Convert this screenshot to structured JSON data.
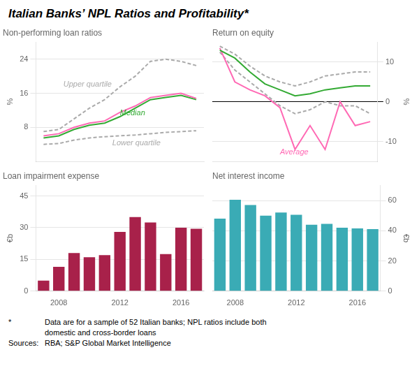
{
  "title": "Italian Banks’ NPL Ratios and Profitability*",
  "annotations": [
    [
      "*",
      "Data are for a sample of 52 Italian banks; NPL ratios include both"
    ],
    [
      "domestic and cross-border loans"
    ],
    [
      "Sources:",
      "RBA; S&P Global Market Intelligence"
    ]
  ],
  "chart_data": [
    {
      "type": "line",
      "title": "Non-performing loan ratios",
      "ylabel": "%",
      "x": [
        2007,
        2008,
        2009,
        2010,
        2011,
        2012,
        2013,
        2014,
        2015,
        2016,
        2017
      ],
      "xlim": [
        2006.5,
        2017.5
      ],
      "xticks": [
        2008,
        2012,
        2016
      ],
      "ylim": [
        0,
        28
      ],
      "yticks": [
        8,
        16,
        24
      ],
      "grid": true,
      "tick_labels": "y",
      "series": [
        {
          "color": "#aaaaaa",
          "line_style": "dashed",
          "values": [
            7.0,
            7.5,
            10.0,
            12.5,
            14.5,
            17.5,
            20.0,
            23.5,
            24.0,
            23.5,
            22.5
          ]
        },
        {
          "color": "#ff69b4",
          "line_style": "solid",
          "values": [
            6.0,
            6.5,
            8.0,
            9.0,
            9.5,
            11.5,
            13.0,
            15.0,
            15.5,
            16.0,
            14.8
          ]
        },
        {
          "color": "#33aa33",
          "line_style": "solid",
          "values": [
            5.5,
            6.0,
            7.5,
            8.5,
            9.0,
            10.5,
            12.5,
            14.5,
            15.0,
            15.5,
            14.5
          ]
        },
        {
          "color": "#aaaaaa",
          "line_style": "dashed",
          "values": [
            4.0,
            4.2,
            5.0,
            5.5,
            5.8,
            6.0,
            6.2,
            6.5,
            6.8,
            7.0,
            7.2
          ]
        }
      ],
      "annotations": [
        {
          "text": "Upper quartile",
          "x": 2008.3,
          "y": 17.5,
          "color": "#aaaaaa"
        },
        {
          "text": "Median",
          "x": 2012.0,
          "y": 10.8,
          "color": "#33aa33"
        },
        {
          "text": "Lower quartile",
          "x": 2011.5,
          "y": 3.8,
          "color": "#aaaaaa"
        }
      ]
    },
    {
      "type": "line",
      "title": "Return on equity",
      "ylabel": "%",
      "x": [
        2007,
        2008,
        2009,
        2010,
        2011,
        2012,
        2013,
        2014,
        2015,
        2016,
        2017
      ],
      "xlim": [
        2006.5,
        2017.5
      ],
      "xticks": [
        2008,
        2012,
        2016
      ],
      "ylim": [
        -15,
        15
      ],
      "yticks": [
        -10,
        0,
        10
      ],
      "grid": true,
      "tick_labels": "y",
      "series": [
        {
          "color": "#aaaaaa",
          "line_style": "dashed",
          "values": [
            14.0,
            12.0,
            9.0,
            6.5,
            5.0,
            4.0,
            5.0,
            6.5,
            7.0,
            7.5,
            7.5
          ]
        },
        {
          "color": "#33aa33",
          "line_style": "solid",
          "values": [
            13.0,
            11.0,
            7.5,
            4.5,
            3.0,
            1.5,
            2.0,
            3.0,
            3.5,
            4.0,
            4.0
          ]
        },
        {
          "color": "#ff69b4",
          "line_style": "solid",
          "values": [
            13.5,
            5.0,
            3.0,
            1.5,
            -1.5,
            -12.0,
            -6.0,
            -12.0,
            0.0,
            -6.0,
            -5.0
          ]
        },
        {
          "color": "#aaaaaa",
          "line_style": "dashed",
          "values": [
            12.5,
            8.0,
            5.0,
            2.0,
            -1.0,
            -3.0,
            -2.0,
            0.0,
            -1.0,
            -1.0,
            -3.0
          ]
        }
      ],
      "annotations": [
        {
          "text": "Average",
          "x": 2011.0,
          "y": -13.2,
          "color": "#ff69b4"
        }
      ]
    },
    {
      "type": "bar",
      "title": "Loan impairment expense",
      "ylabel": "€b",
      "x": [
        2007,
        2008,
        2009,
        2010,
        2011,
        2012,
        2013,
        2014,
        2015,
        2016,
        2017
      ],
      "values": [
        5.0,
        11.5,
        18.0,
        16.0,
        17.0,
        28.0,
        35.0,
        32.5,
        17.5,
        30.0,
        29.5
      ],
      "color": "#a8214a",
      "xlim": [
        2006.5,
        2017.5
      ],
      "xticks": [
        2008,
        2012,
        2016
      ],
      "ylim": [
        0,
        50
      ],
      "yticks": [
        0,
        15,
        30,
        45
      ],
      "grid": true
    },
    {
      "type": "bar",
      "title": "Net interest income",
      "ylabel": "€b",
      "x": [
        2007,
        2008,
        2009,
        2010,
        2011,
        2012,
        2013,
        2014,
        2015,
        2016,
        2017
      ],
      "values": [
        48.0,
        60.5,
        57.0,
        50.0,
        52.0,
        50.5,
        44.0,
        44.5,
        42.0,
        41.5,
        41.0
      ],
      "color": "#3aabb5",
      "xlim": [
        2006.5,
        2017.5
      ],
      "xticks": [
        2008,
        2012,
        2016
      ],
      "ylim": [
        0,
        70
      ],
      "yticks": [
        0,
        20,
        40,
        60
      ],
      "grid": true
    }
  ]
}
